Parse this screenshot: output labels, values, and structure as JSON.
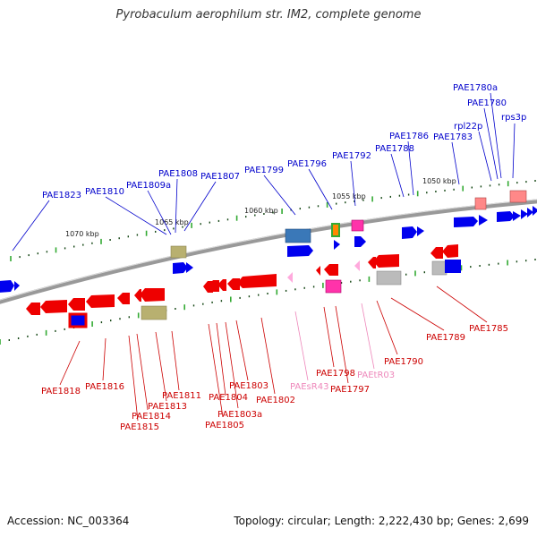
{
  "title": "Pyrobaculum aerophilum str. IM2, complete genome",
  "accession_text": "Accession: NC_003364",
  "summary_text": "Topology: circular; Length: 2,222,430 bp; Genes: 2,699",
  "colors": {
    "forward_gene": "#0000ee",
    "reverse_gene": "#ee0000",
    "rna_gene": "#ff99cc",
    "forward_label": "#0000cc",
    "reverse_label": "#cc0000",
    "rna_label": "#ee88bb",
    "backbone": "#888888",
    "tick_major": "#33aa33",
    "tick_minor": "#114411"
  },
  "scale_labels": [
    {
      "text": "1070 kbp"
    },
    {
      "text": "1065 kbp"
    },
    {
      "text": "1060 kbp"
    },
    {
      "text": "1055 kbp"
    },
    {
      "text": "1050 kbp"
    }
  ],
  "top_labels": [
    {
      "text": "PAE1823"
    },
    {
      "text": "PAE1810"
    },
    {
      "text": "PAE1809a"
    },
    {
      "text": "PAE1808"
    },
    {
      "text": "PAE1807"
    },
    {
      "text": "PAE1799"
    },
    {
      "text": "PAE1796"
    },
    {
      "text": "PAE1792"
    },
    {
      "text": "PAE1788"
    },
    {
      "text": "PAE1786"
    },
    {
      "text": "PAE1783"
    },
    {
      "text": "rpl22p"
    },
    {
      "text": "PAE1780"
    },
    {
      "text": "PAE1780a"
    },
    {
      "text": "rps3p"
    }
  ],
  "bottom_labels": [
    {
      "text": "PAE1818"
    },
    {
      "text": "PAE1816"
    },
    {
      "text": "PAE1815"
    },
    {
      "text": "PAE1814"
    },
    {
      "text": "PAE1813"
    },
    {
      "text": "PAE1811"
    },
    {
      "text": "PAE1805"
    },
    {
      "text": "PAE1804"
    },
    {
      "text": "PAE1803a"
    },
    {
      "text": "PAE1803"
    },
    {
      "text": "PAE1802"
    },
    {
      "text": "PAEsR43"
    },
    {
      "text": "PAE1798"
    },
    {
      "text": "PAE1797"
    },
    {
      "text": "PAEtR03"
    },
    {
      "text": "PAE1790"
    },
    {
      "text": "PAE1789"
    },
    {
      "text": "PAE1785"
    }
  ]
}
